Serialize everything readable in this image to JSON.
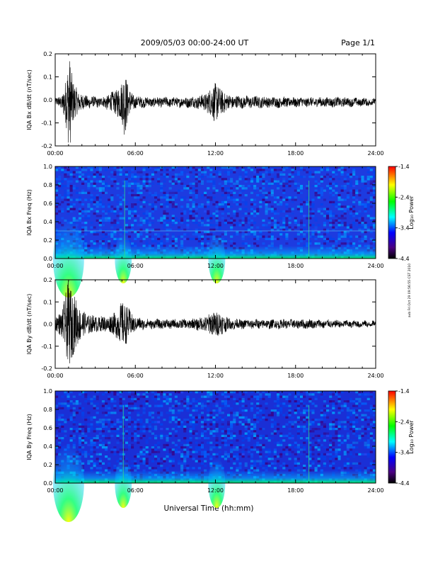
{
  "header": {
    "title": "2009/05/03  00:00-24:00 UT",
    "page": "Page 1/1"
  },
  "xlabel": "Universal Time (hh:mm)",
  "side_stamp": "avb Fri Oct 29 09:56:55 CST 2010",
  "chart_data": [
    {
      "type": "line",
      "ylabel": "IQA Bx dB/dt (nT/sec)",
      "ylim": [
        -0.2,
        0.2
      ],
      "yticks": [
        "0.2",
        "0.1",
        "0.0",
        "-0.1",
        "-0.2"
      ],
      "xlim": [
        0,
        24
      ],
      "xticks": [
        "00:00",
        "06:00",
        "12:00",
        "18:00",
        "24:00"
      ],
      "series": [
        {
          "x": [
            0,
            0.5,
            0.8,
            1.0,
            1.1,
            1.2,
            1.4,
            1.8,
            2.5,
            3.5,
            4.5,
            5.0,
            5.2,
            5.5,
            6.0,
            7,
            8,
            9,
            10,
            11,
            11.5,
            12.0,
            12.3,
            13,
            14,
            15,
            16,
            17,
            18,
            19,
            20,
            21,
            22,
            23,
            24
          ],
          "amp": [
            0.015,
            0.03,
            0.1,
            0.19,
            0.2,
            0.15,
            0.08,
            0.04,
            0.025,
            0.02,
            0.05,
            0.09,
            0.15,
            0.06,
            0.025,
            0.02,
            0.02,
            0.02,
            0.022,
            0.03,
            0.05,
            0.09,
            0.06,
            0.03,
            0.025,
            0.025,
            0.022,
            0.022,
            0.02,
            0.02,
            0.02,
            0.02,
            0.018,
            0.016,
            0.014
          ],
          "offset": -0.01
        }
      ]
    },
    {
      "type": "heatmap",
      "ylabel": "IQA Bx Freq (Hz)",
      "ylim": [
        0.0,
        1.0
      ],
      "yticks": [
        "1.0",
        "0.8",
        "0.6",
        "0.4",
        "0.2",
        "0.0"
      ],
      "xlim": [
        0,
        24
      ],
      "xticks": [
        "00:00",
        "06:00",
        "12:00",
        "18:00",
        "24:00"
      ],
      "colorbar": {
        "label": "Log₁₀ Power",
        "ticks": [
          "-1.4",
          "-2.4",
          "-3.4",
          "-4.4"
        ],
        "range": [
          -4.4,
          -1.4
        ]
      },
      "bursts": [
        1.0,
        5.1,
        12.1
      ],
      "lines_time": [
        5.2,
        19.0
      ],
      "line_freq": 0.3
    },
    {
      "type": "line",
      "ylabel": "IQA By dB/dt (nT/sec)",
      "ylim": [
        -0.2,
        0.2
      ],
      "yticks": [
        "0.2",
        "0.1",
        "0.0",
        "-0.1",
        "-0.2"
      ],
      "xlim": [
        0,
        24
      ],
      "xticks": [
        "00:00",
        "06:00",
        "12:00",
        "18:00",
        "24:00"
      ],
      "series": [
        {
          "x": [
            0,
            0.5,
            0.8,
            1.0,
            1.2,
            1.5,
            1.8,
            2.2,
            3,
            4,
            4.6,
            5.0,
            5.3,
            5.7,
            6.0,
            7,
            8,
            9,
            10,
            11,
            11.5,
            12.0,
            12.4,
            13,
            14,
            15,
            16,
            17,
            18,
            19,
            20,
            21,
            22,
            23,
            24
          ],
          "amp": [
            0.03,
            0.06,
            0.14,
            0.2,
            0.16,
            0.12,
            0.08,
            0.05,
            0.035,
            0.035,
            0.06,
            0.1,
            0.09,
            0.05,
            0.03,
            0.02,
            0.02,
            0.02,
            0.02,
            0.03,
            0.045,
            0.06,
            0.05,
            0.025,
            0.02,
            0.02,
            0.02,
            0.02,
            0.02,
            0.02,
            0.018,
            0.016,
            0.015,
            0.014,
            0.012
          ],
          "offset": 0.0
        }
      ]
    },
    {
      "type": "heatmap",
      "ylabel": "IQA By Freq (Hz)",
      "ylim": [
        0.0,
        1.0
      ],
      "yticks": [
        "1.0",
        "0.8",
        "0.6",
        "0.4",
        "0.2",
        "0.0"
      ],
      "xlim": [
        0,
        24
      ],
      "xticks": [
        "00:00",
        "06:00",
        "12:00",
        "18:00",
        "24:00"
      ],
      "colorbar": {
        "label": "Log₁₀ Power",
        "ticks": [
          "-1.4",
          "-2.4",
          "-3.4",
          "-4.4"
        ],
        "range": [
          -4.4,
          -1.4
        ]
      },
      "bursts": [
        1.0,
        5.1,
        12.1
      ],
      "lines_time": [
        5.1,
        19.0
      ],
      "line_freq": null
    }
  ]
}
